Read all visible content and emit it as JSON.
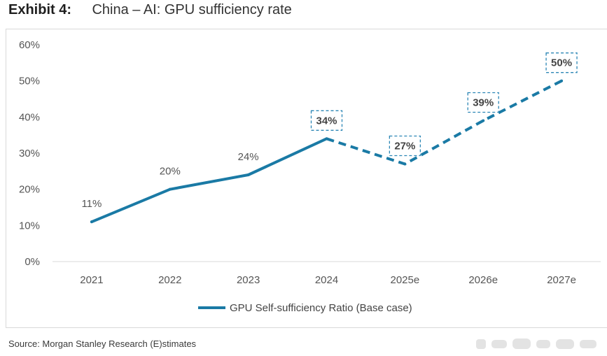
{
  "header": {
    "exhibit_label": "Exhibit 4:",
    "title": "China – AI: GPU sufficiency rate"
  },
  "footer": {
    "source": "Source: Morgan Stanley Research (E)stimates"
  },
  "colors": {
    "line": "#1a7aa5",
    "axis": "#d9d9d9",
    "label": "#555555",
    "box_border": "#2b86b5"
  },
  "chart_data": {
    "type": "line",
    "title": "China – AI: GPU sufficiency rate",
    "categories": [
      "2021",
      "2022",
      "2023",
      "2024",
      "2025e",
      "2026e",
      "2027e"
    ],
    "series": [
      {
        "name": "GPU Self-sufficiency Ratio (Base case)",
        "values": [
          11,
          20,
          24,
          34,
          27,
          39,
          50
        ],
        "value_labels": [
          "11%",
          "20%",
          "24%",
          "34%",
          "27%",
          "39%",
          "50%"
        ],
        "actual_through_index": 3,
        "estimate_style": "dashed"
      }
    ],
    "y_ticks": [
      0,
      10,
      20,
      30,
      40,
      50,
      60
    ],
    "y_tick_labels": [
      "0%",
      "10%",
      "20%",
      "30%",
      "40%",
      "50%",
      "60%"
    ],
    "ylim": [
      0,
      60
    ],
    "xlabel": "",
    "ylabel": "",
    "legend": "bottom-center",
    "grid": false
  }
}
